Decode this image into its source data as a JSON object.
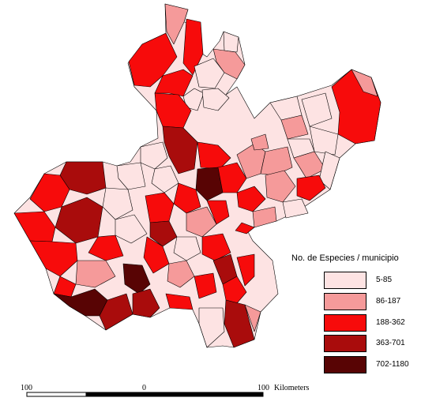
{
  "legend": {
    "title": "No. de Especies / municipio",
    "classes": [
      {
        "label": "5-85",
        "color": "#fde3e3"
      },
      {
        "label": "86-187",
        "color": "#f59a9a"
      },
      {
        "label": "188-362",
        "color": "#f70b0b"
      },
      {
        "label": "363-701",
        "color": "#a90c0c"
      },
      {
        "label": "702-1180",
        "color": "#580404"
      }
    ]
  },
  "scale_bar": {
    "left_label": "100",
    "center_label": "0",
    "right_label": "100",
    "unit": "Kilometers"
  }
}
